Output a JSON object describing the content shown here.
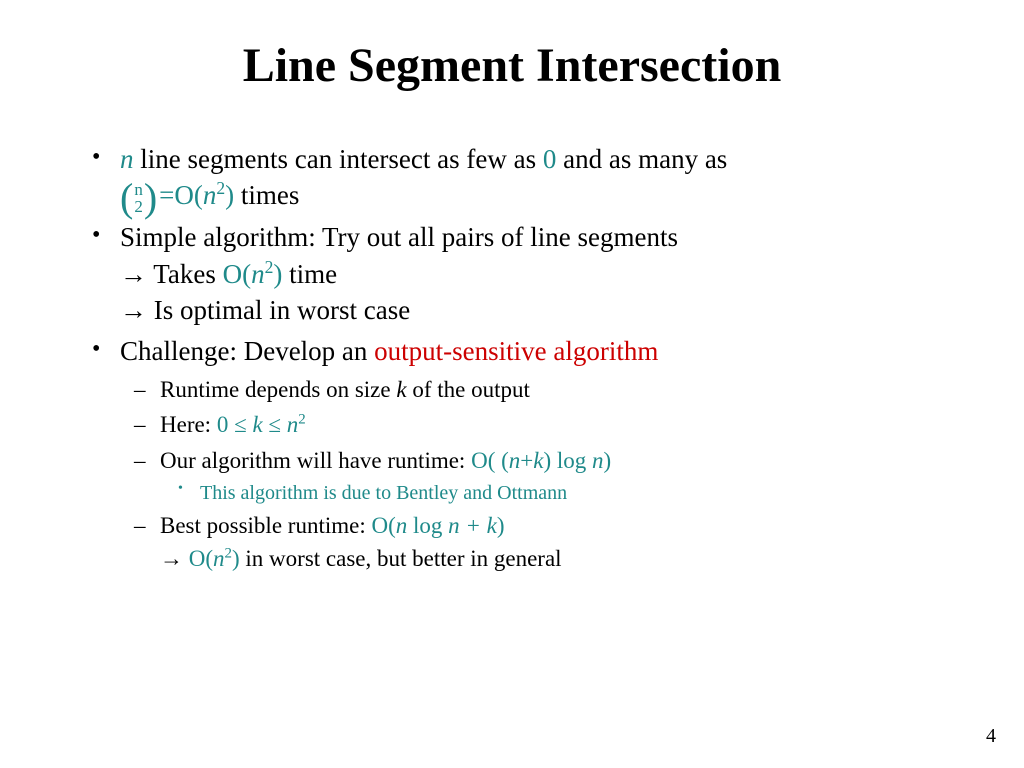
{
  "colors": {
    "teal": "#1f8a8a",
    "red": "#cc0000",
    "text": "#000000",
    "bg": "#ffffff"
  },
  "fonts": {
    "title_pt": 48,
    "body_pt": 27,
    "sub_pt": 23,
    "subsub_pt": 20
  },
  "title": "Line Segment Intersection",
  "page_number": "4",
  "b1": {
    "n": "n",
    "t1": " line segments can intersect as few as ",
    "zero": "0",
    "t2": " and as many as",
    "binom_n": "n",
    "binom_k": "2",
    "eq": "=O(",
    "nvar": "n",
    "sq": "2",
    "close": ")",
    "times": " times"
  },
  "b2": {
    "l1": "Simple algorithm: Try out all pairs of line segments",
    "arrow": "→",
    "takes": " Takes ",
    "bigO": "O(",
    "nvar": "n",
    "sq": "2",
    "close": ")",
    "time": " time",
    "l3": " Is optimal in worst case"
  },
  "b3": {
    "pre": "Challenge: Develop an ",
    "em": "output-sensitive algorithm"
  },
  "s1": {
    "pre": "Runtime depends on size ",
    "k": "k",
    "post": " of the output"
  },
  "s2": {
    "pre": "Here: ",
    "lo": "0",
    "le1": " ≤ ",
    "k": "k",
    "le2": " ≤  ",
    "n": "n",
    "sq": "2"
  },
  "s3": {
    "pre": "Our algorithm will have runtime: ",
    "expr": "O( (",
    "n1": "n",
    "plus": "+",
    "k": "k",
    "mid": ") log ",
    "n2": "n",
    "close": ")"
  },
  "ss1": "This algorithm is due to Bentley and Ottmann",
  "s4": {
    "pre": "Best possible runtime: ",
    "open": "O(",
    "n1": "n",
    "log": " log ",
    "n2": "n",
    "plus": " + ",
    "k": "k",
    "close": ")",
    "arrow": "→",
    "wopen": " O(",
    "wn": "n",
    "wsq": "2",
    "wclose": ")",
    "post": " in worst case, but better in general"
  }
}
